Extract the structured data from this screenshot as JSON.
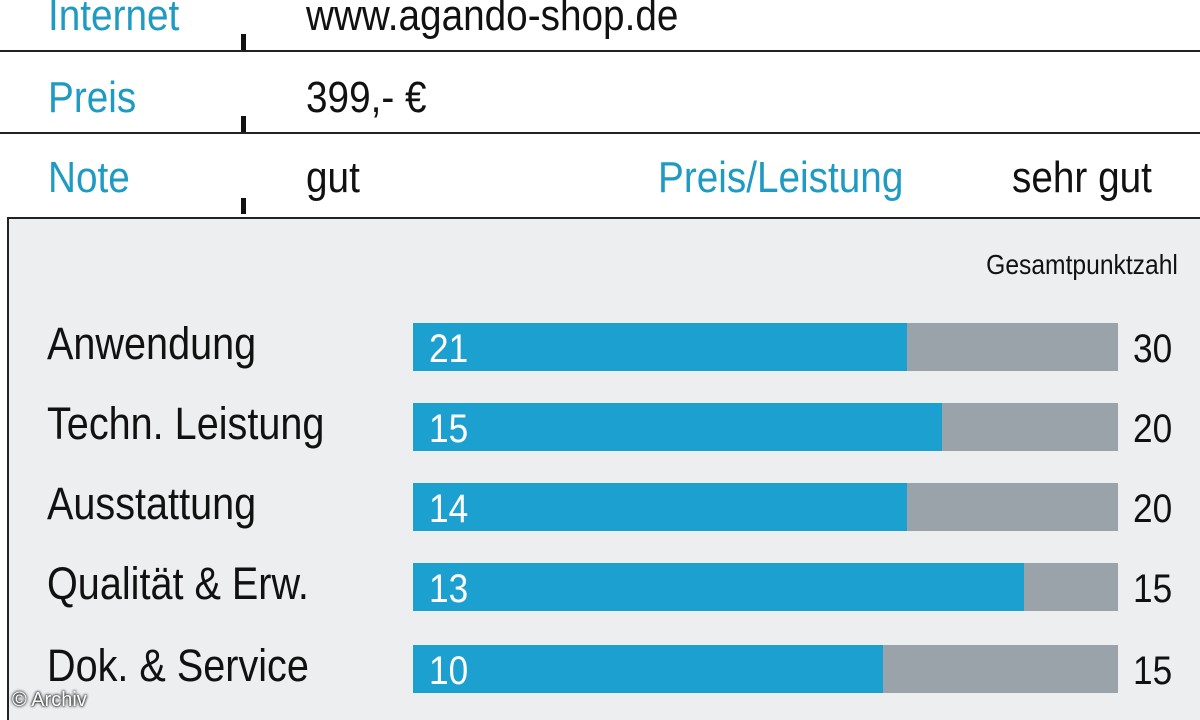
{
  "info": {
    "internet_label": "Internet",
    "internet_value": "www.agando-shop.de",
    "price_label": "Preis",
    "price_value": "399,- €",
    "grade_label": "Note",
    "grade_value": "gut",
    "value_label": "Preis/Leistung",
    "value_value": "sehr gut"
  },
  "chart_data": {
    "type": "bar",
    "orientation": "horizontal",
    "total_header": "Gesamtpunktzahl",
    "categories": [
      "Anwendung",
      "Techn. Leistung",
      "Ausstattung",
      "Qualität & Erw.",
      "Dok. & Service"
    ],
    "values": [
      21,
      15,
      14,
      13,
      10
    ],
    "max_values": [
      30,
      20,
      20,
      15,
      15
    ],
    "colors": {
      "fill": "#1ca0cf",
      "track": "#9ba3aa",
      "label": "#1f9ac3"
    }
  },
  "credit": "© Archiv"
}
